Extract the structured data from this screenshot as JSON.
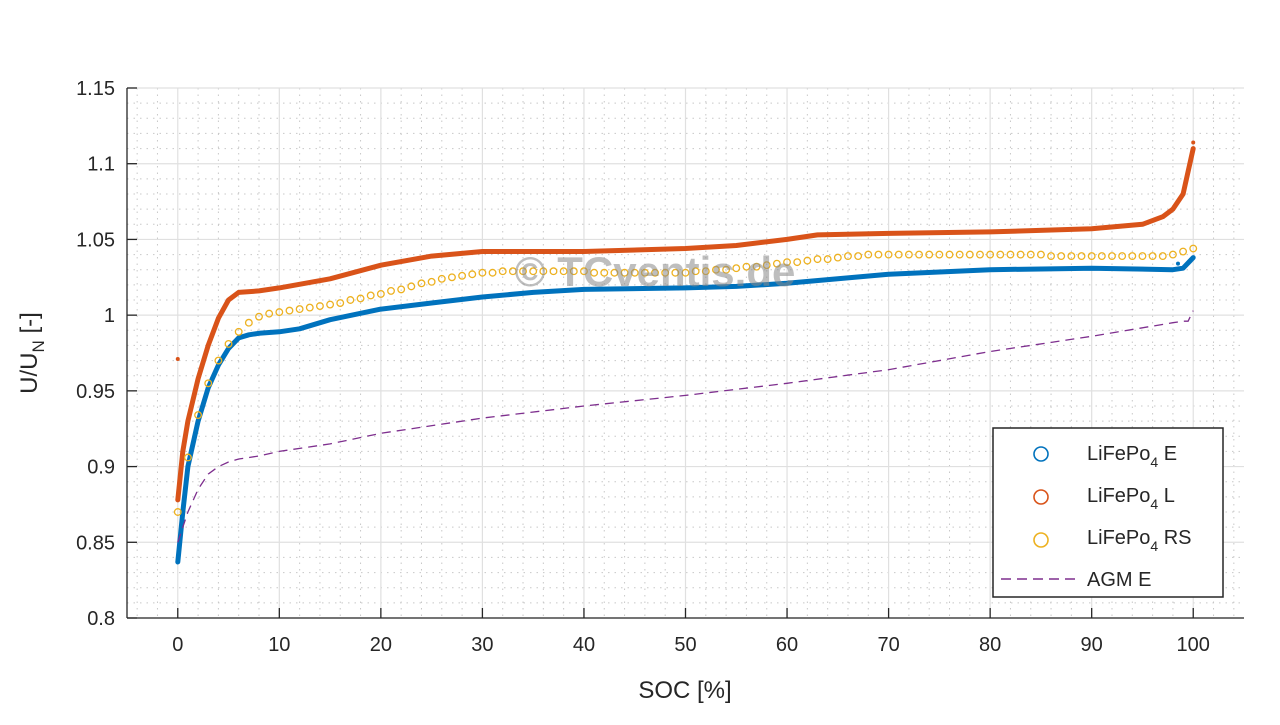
{
  "watermark": "© TCventis.de",
  "chart_data": {
    "type": "scatter",
    "title": "",
    "xlabel": "SOC [%]",
    "ylabel_main": "U/U",
    "ylabel_sub": "N",
    "ylabel_unit": " [-]",
    "xlim": [
      -5,
      105
    ],
    "ylim": [
      0.8,
      1.15
    ],
    "xticks": [
      0,
      10,
      20,
      30,
      40,
      50,
      60,
      70,
      80,
      90,
      100
    ],
    "xtick_labels": [
      "0",
      "10",
      "20",
      "30",
      "40",
      "50",
      "60",
      "70",
      "80",
      "90",
      "100"
    ],
    "yticks": [
      0.8,
      0.85,
      0.9,
      0.95,
      1.0,
      1.05,
      1.1,
      1.15
    ],
    "ytick_labels": [
      "0.8",
      "0.85",
      "0.9",
      "0.95",
      "1",
      "1.05",
      "1.1",
      "1.15"
    ],
    "grid": "major and minor",
    "legend_position": "bottom-right",
    "series": [
      {
        "name": "LiFePo",
        "name_sub": "4",
        "name_suffix": " E",
        "style": "dense-dots",
        "color": "#0072BD",
        "x": [
          0,
          0.5,
          1,
          2,
          3,
          4,
          5,
          6,
          7,
          8,
          10,
          12,
          15,
          20,
          25,
          30,
          35,
          40,
          50,
          55,
          60,
          65,
          70,
          80,
          90,
          98,
          99,
          100
        ],
        "y": [
          0.837,
          0.87,
          0.9,
          0.93,
          0.952,
          0.967,
          0.978,
          0.985,
          0.987,
          0.988,
          0.989,
          0.991,
          0.997,
          1.004,
          1.008,
          1.012,
          1.015,
          1.017,
          1.018,
          1.019,
          1.021,
          1.024,
          1.027,
          1.03,
          1.031,
          1.03,
          1.031,
          1.038
        ],
        "outliers": [
          [
            98.5,
            1.034
          ]
        ]
      },
      {
        "name": "LiFePo",
        "name_sub": "4",
        "name_suffix": " L",
        "style": "dense-dots",
        "color": "#D95319",
        "x": [
          0,
          0.5,
          1,
          2,
          3,
          4,
          5,
          6,
          8,
          10,
          15,
          20,
          25,
          30,
          40,
          50,
          55,
          60,
          63,
          70,
          80,
          90,
          95,
          97,
          98,
          99,
          100
        ],
        "y": [
          0.878,
          0.91,
          0.93,
          0.958,
          0.98,
          0.998,
          1.01,
          1.015,
          1.016,
          1.018,
          1.024,
          1.033,
          1.039,
          1.042,
          1.042,
          1.044,
          1.046,
          1.05,
          1.053,
          1.054,
          1.055,
          1.057,
          1.06,
          1.065,
          1.07,
          1.08,
          1.11
        ],
        "outliers": [
          [
            0,
            0.971
          ],
          [
            100,
            1.114
          ]
        ]
      },
      {
        "name": "LiFePo",
        "name_sub": "4",
        "name_suffix": " RS",
        "style": "circles",
        "color": "#EDB120",
        "x": [
          0,
          1,
          2,
          3,
          4,
          5,
          6,
          7,
          8,
          9,
          10,
          11,
          12,
          13,
          14,
          15,
          16,
          17,
          18,
          19,
          20,
          21,
          22,
          23,
          24,
          25,
          26,
          27,
          28,
          29,
          30,
          31,
          32,
          33,
          34,
          35,
          36,
          37,
          38,
          39,
          40,
          41,
          42,
          43,
          44,
          45,
          46,
          47,
          48,
          49,
          50,
          51,
          52,
          53,
          54,
          55,
          56,
          57,
          58,
          59,
          60,
          61,
          62,
          63,
          64,
          65,
          66,
          67,
          68,
          69,
          70,
          71,
          72,
          73,
          74,
          75,
          76,
          77,
          78,
          79,
          80,
          81,
          82,
          83,
          84,
          85,
          86,
          87,
          88,
          89,
          90,
          91,
          92,
          93,
          94,
          95,
          96,
          97,
          98,
          99,
          100
        ],
        "y": [
          0.87,
          0.906,
          0.934,
          0.955,
          0.97,
          0.981,
          0.989,
          0.995,
          0.999,
          1.001,
          1.002,
          1.003,
          1.004,
          1.005,
          1.006,
          1.007,
          1.008,
          1.01,
          1.011,
          1.013,
          1.014,
          1.016,
          1.017,
          1.019,
          1.021,
          1.022,
          1.024,
          1.025,
          1.026,
          1.027,
          1.028,
          1.028,
          1.029,
          1.029,
          1.029,
          1.029,
          1.029,
          1.029,
          1.029,
          1.029,
          1.029,
          1.028,
          1.028,
          1.028,
          1.028,
          1.028,
          1.028,
          1.028,
          1.028,
          1.028,
          1.028,
          1.029,
          1.029,
          1.03,
          1.03,
          1.031,
          1.032,
          1.032,
          1.033,
          1.034,
          1.035,
          1.035,
          1.036,
          1.037,
          1.037,
          1.038,
          1.039,
          1.039,
          1.04,
          1.04,
          1.04,
          1.04,
          1.04,
          1.04,
          1.04,
          1.04,
          1.04,
          1.04,
          1.04,
          1.04,
          1.04,
          1.04,
          1.04,
          1.04,
          1.04,
          1.04,
          1.039,
          1.039,
          1.039,
          1.039,
          1.039,
          1.039,
          1.039,
          1.039,
          1.039,
          1.039,
          1.039,
          1.039,
          1.04,
          1.042,
          1.044
        ]
      },
      {
        "name": "AGM E",
        "style": "dashed-line",
        "color": "#7E2F8E",
        "x": [
          0,
          1,
          2,
          3,
          4,
          5,
          6,
          8,
          10,
          15,
          20,
          30,
          40,
          50,
          60,
          70,
          80,
          90,
          98,
          99,
          99.5,
          100
        ],
        "y": [
          0.85,
          0.87,
          0.885,
          0.895,
          0.9,
          0.903,
          0.905,
          0.907,
          0.91,
          0.915,
          0.922,
          0.932,
          0.94,
          0.947,
          0.955,
          0.964,
          0.976,
          0.986,
          0.995,
          0.996,
          0.996,
          1.003
        ]
      }
    ]
  }
}
